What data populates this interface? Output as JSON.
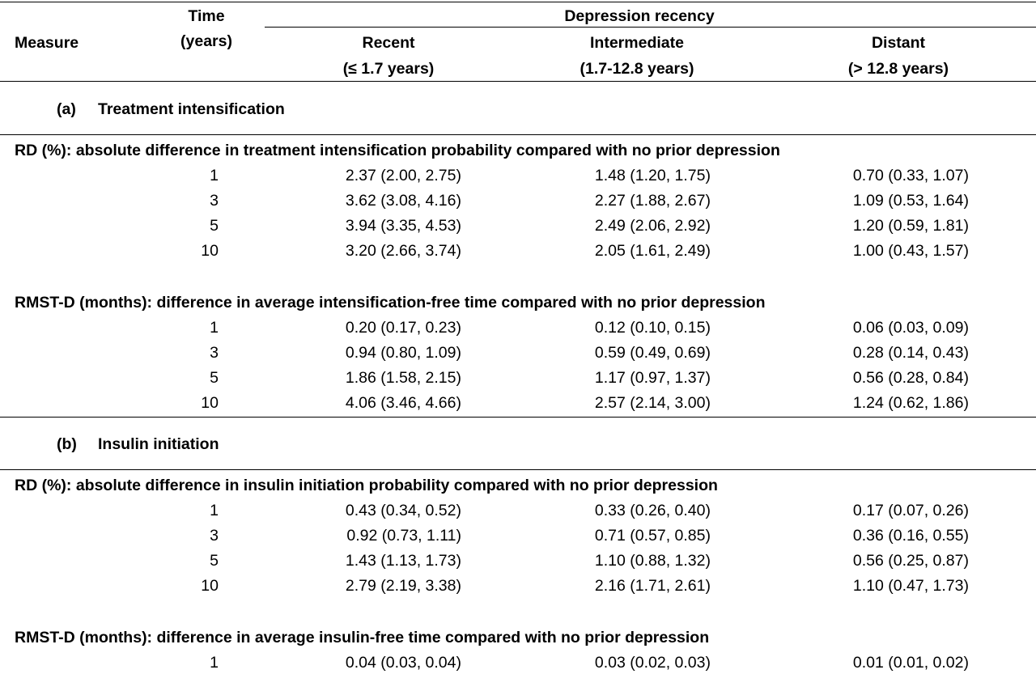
{
  "header": {
    "measure": "Measure",
    "time_line1": "Time",
    "time_line2": "(years)",
    "group": "Depression recency",
    "recent_line1": "Recent",
    "recent_line2": "(≤ 1.7 years)",
    "intermediate_line1": "Intermediate",
    "intermediate_line2": "(1.7-12.8 years)",
    "distant_line1": "Distant",
    "distant_line2": "(> 12.8 years)"
  },
  "sections": [
    {
      "letter": "(a)",
      "title": "Treatment intensification",
      "blocks": [
        {
          "heading": "RD (%): absolute difference in treatment intensification probability compared with no prior depression",
          "rows": [
            {
              "time": "1",
              "recent": "2.37 (2.00, 2.75)",
              "intermediate": "1.48 (1.20, 1.75)",
              "distant": "0.70 (0.33, 1.07)"
            },
            {
              "time": "3",
              "recent": "3.62 (3.08, 4.16)",
              "intermediate": "2.27 (1.88, 2.67)",
              "distant": "1.09 (0.53, 1.64)"
            },
            {
              "time": "5",
              "recent": "3.94 (3.35, 4.53)",
              "intermediate": "2.49 (2.06, 2.92)",
              "distant": "1.20 (0.59, 1.81)"
            },
            {
              "time": "10",
              "recent": "3.20 (2.66, 3.74)",
              "intermediate": "2.05 (1.61, 2.49)",
              "distant": "1.00 (0.43, 1.57)"
            }
          ]
        },
        {
          "heading": "RMST-D (months): difference in average intensification-free time compared with no prior depression",
          "rows": [
            {
              "time": "1",
              "recent": "0.20 (0.17, 0.23)",
              "intermediate": "0.12 (0.10, 0.15)",
              "distant": "0.06 (0.03, 0.09)"
            },
            {
              "time": "3",
              "recent": "0.94 (0.80, 1.09)",
              "intermediate": "0.59 (0.49, 0.69)",
              "distant": "0.28 (0.14, 0.43)"
            },
            {
              "time": "5",
              "recent": "1.86 (1.58, 2.15)",
              "intermediate": "1.17 (0.97, 1.37)",
              "distant": "0.56 (0.28, 0.84)"
            },
            {
              "time": "10",
              "recent": "4.06 (3.46, 4.66)",
              "intermediate": "2.57 (2.14, 3.00)",
              "distant": "1.24 (0.62, 1.86)"
            }
          ]
        }
      ]
    },
    {
      "letter": "(b)",
      "title": "Insulin initiation",
      "blocks": [
        {
          "heading": "RD (%): absolute difference in insulin initiation probability compared with no prior depression",
          "rows": [
            {
              "time": "1",
              "recent": "0.43 (0.34, 0.52)",
              "intermediate": "0.33 (0.26, 0.40)",
              "distant": "0.17 (0.07, 0.26)"
            },
            {
              "time": "3",
              "recent": "0.92 (0.73, 1.11)",
              "intermediate": "0.71 (0.57, 0.85)",
              "distant": "0.36 (0.16, 0.55)"
            },
            {
              "time": "5",
              "recent": "1.43 (1.13, 1.73)",
              "intermediate": "1.10 (0.88, 1.32)",
              "distant": "0.56 (0.25, 0.87)"
            },
            {
              "time": "10",
              "recent": "2.79 (2.19, 3.38)",
              "intermediate": "2.16 (1.71, 2.61)",
              "distant": "1.10 (0.47, 1.73)"
            }
          ]
        },
        {
          "heading": "RMST-D (months): difference in average insulin-free time compared with no prior depression",
          "rows": [
            {
              "time": "1",
              "recent": "0.04 (0.03, 0.04)",
              "intermediate": "0.03 (0.02, 0.03)",
              "distant": "0.01 (0.01, 0.02)"
            }
          ]
        }
      ]
    }
  ]
}
